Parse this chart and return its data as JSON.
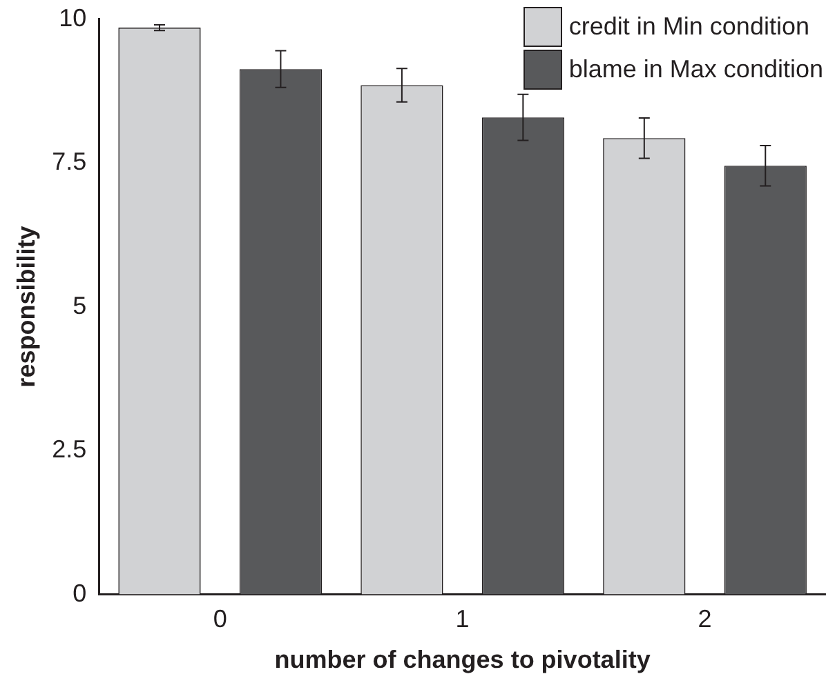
{
  "chart_data": {
    "type": "bar",
    "xlabel": "number of changes to pivotality",
    "ylabel": "responsibility",
    "categories": [
      "0",
      "1",
      "2"
    ],
    "series": [
      {
        "name": "credit in Min condition",
        "color": "#d1d2d4",
        "values": [
          9.85,
          8.85,
          7.93
        ],
        "errors": [
          0.05,
          0.29,
          0.35
        ]
      },
      {
        "name": "blame in Max condition",
        "color": "#58595b",
        "values": [
          9.13,
          8.29,
          7.45
        ],
        "errors": [
          0.32,
          0.4,
          0.35
        ]
      }
    ],
    "ylim": [
      0,
      10
    ],
    "yticks": [
      0,
      2.5,
      5,
      7.5,
      10
    ],
    "grid": false,
    "legend": "top right"
  }
}
